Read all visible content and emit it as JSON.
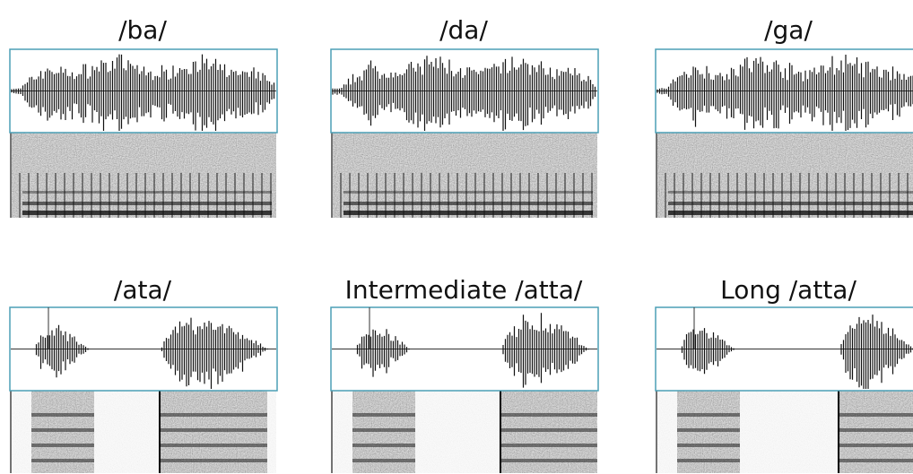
{
  "panels": [
    {
      "label": "/ba/"
    },
    {
      "label": "/da/"
    },
    {
      "label": "/ga/"
    },
    {
      "label": "/ata/"
    },
    {
      "label": "Intermediate /atta/"
    },
    {
      "label": "Long /atta/"
    }
  ]
}
